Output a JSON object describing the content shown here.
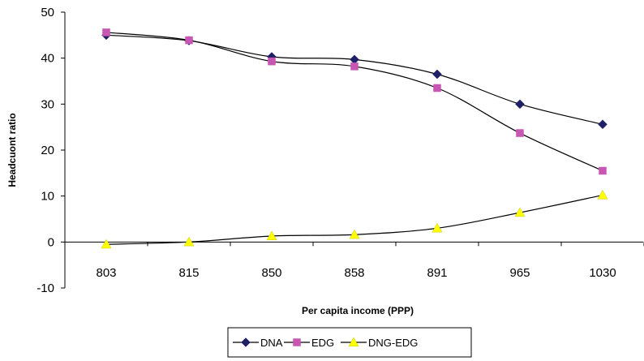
{
  "chart_data": {
    "type": "line",
    "title": "",
    "xlabel": "Per capita income (PPP)",
    "ylabel": "Headcuont ratio",
    "categories": [
      "803",
      "815",
      "850",
      "858",
      "891",
      "965",
      "1030"
    ],
    "ylim": [
      -10,
      50
    ],
    "yticks": [
      -10,
      0,
      10,
      20,
      30,
      40,
      50
    ],
    "grid": false,
    "legend_position": "bottom",
    "series": [
      {
        "name": "DNA",
        "values": [
          45.0,
          43.8,
          40.3,
          39.7,
          36.5,
          30.0,
          25.6
        ],
        "color": "#1f1f66",
        "marker": "diamond"
      },
      {
        "name": "EDG",
        "values": [
          45.6,
          43.9,
          39.3,
          38.2,
          33.5,
          23.7,
          15.5
        ],
        "color": "#c757b3",
        "marker": "square"
      },
      {
        "name": "DNG-EDG",
        "values": [
          -0.5,
          0.0,
          1.3,
          1.6,
          3.0,
          6.4,
          10.2
        ],
        "color": "#ffff00",
        "marker": "triangle"
      }
    ]
  }
}
